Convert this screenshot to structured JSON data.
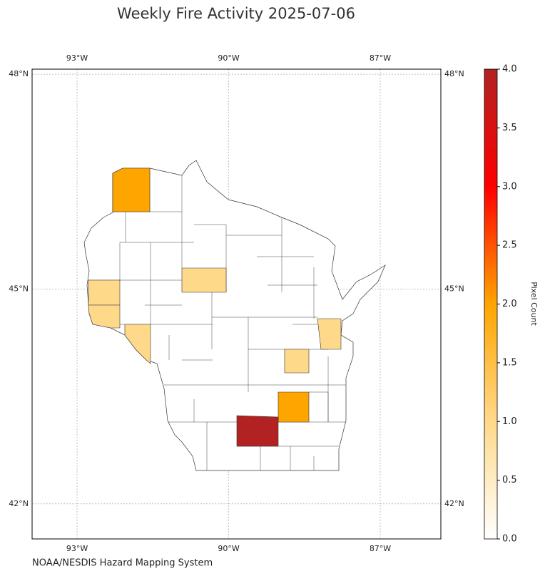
{
  "chart_data": {
    "type": "choropleth",
    "title": "Weekly Fire Activity 2025-07-06",
    "source": "NOAA/NESDIS Hazard Mapping System",
    "xlim": [
      -93.89,
      -85.8
    ],
    "ylim": [
      41.51,
      48.07
    ],
    "xticks": [
      {
        "value": -93,
        "label": "93°W"
      },
      {
        "value": -90,
        "label": "90°W"
      },
      {
        "value": -87,
        "label": "87°W"
      }
    ],
    "yticks": [
      {
        "value": 48,
        "label": "48°N"
      },
      {
        "value": 45,
        "label": "45°N"
      },
      {
        "value": 42,
        "label": "42°N"
      }
    ],
    "grid": true,
    "colorbar": {
      "label": "Pixel Count",
      "lim": [
        0,
        4
      ],
      "ticks": [
        {
          "value": 0,
          "label": "0.0"
        },
        {
          "value": 0.5,
          "label": "0.5"
        },
        {
          "value": 1,
          "label": "1.0"
        },
        {
          "value": 1.5,
          "label": "1.5"
        },
        {
          "value": 2,
          "label": "2.0"
        },
        {
          "value": 2.5,
          "label": "2.5"
        },
        {
          "value": 3,
          "label": "3.0"
        },
        {
          "value": 3.5,
          "label": "3.5"
        },
        {
          "value": 4,
          "label": "4.0"
        }
      ],
      "colors": [
        "#ffffff",
        "#ffd98a",
        "#ffa500",
        "#ff0000",
        "#b22222"
      ]
    },
    "values": [
      2,
      1,
      1,
      1,
      1,
      1,
      1,
      2,
      4
    ]
  }
}
